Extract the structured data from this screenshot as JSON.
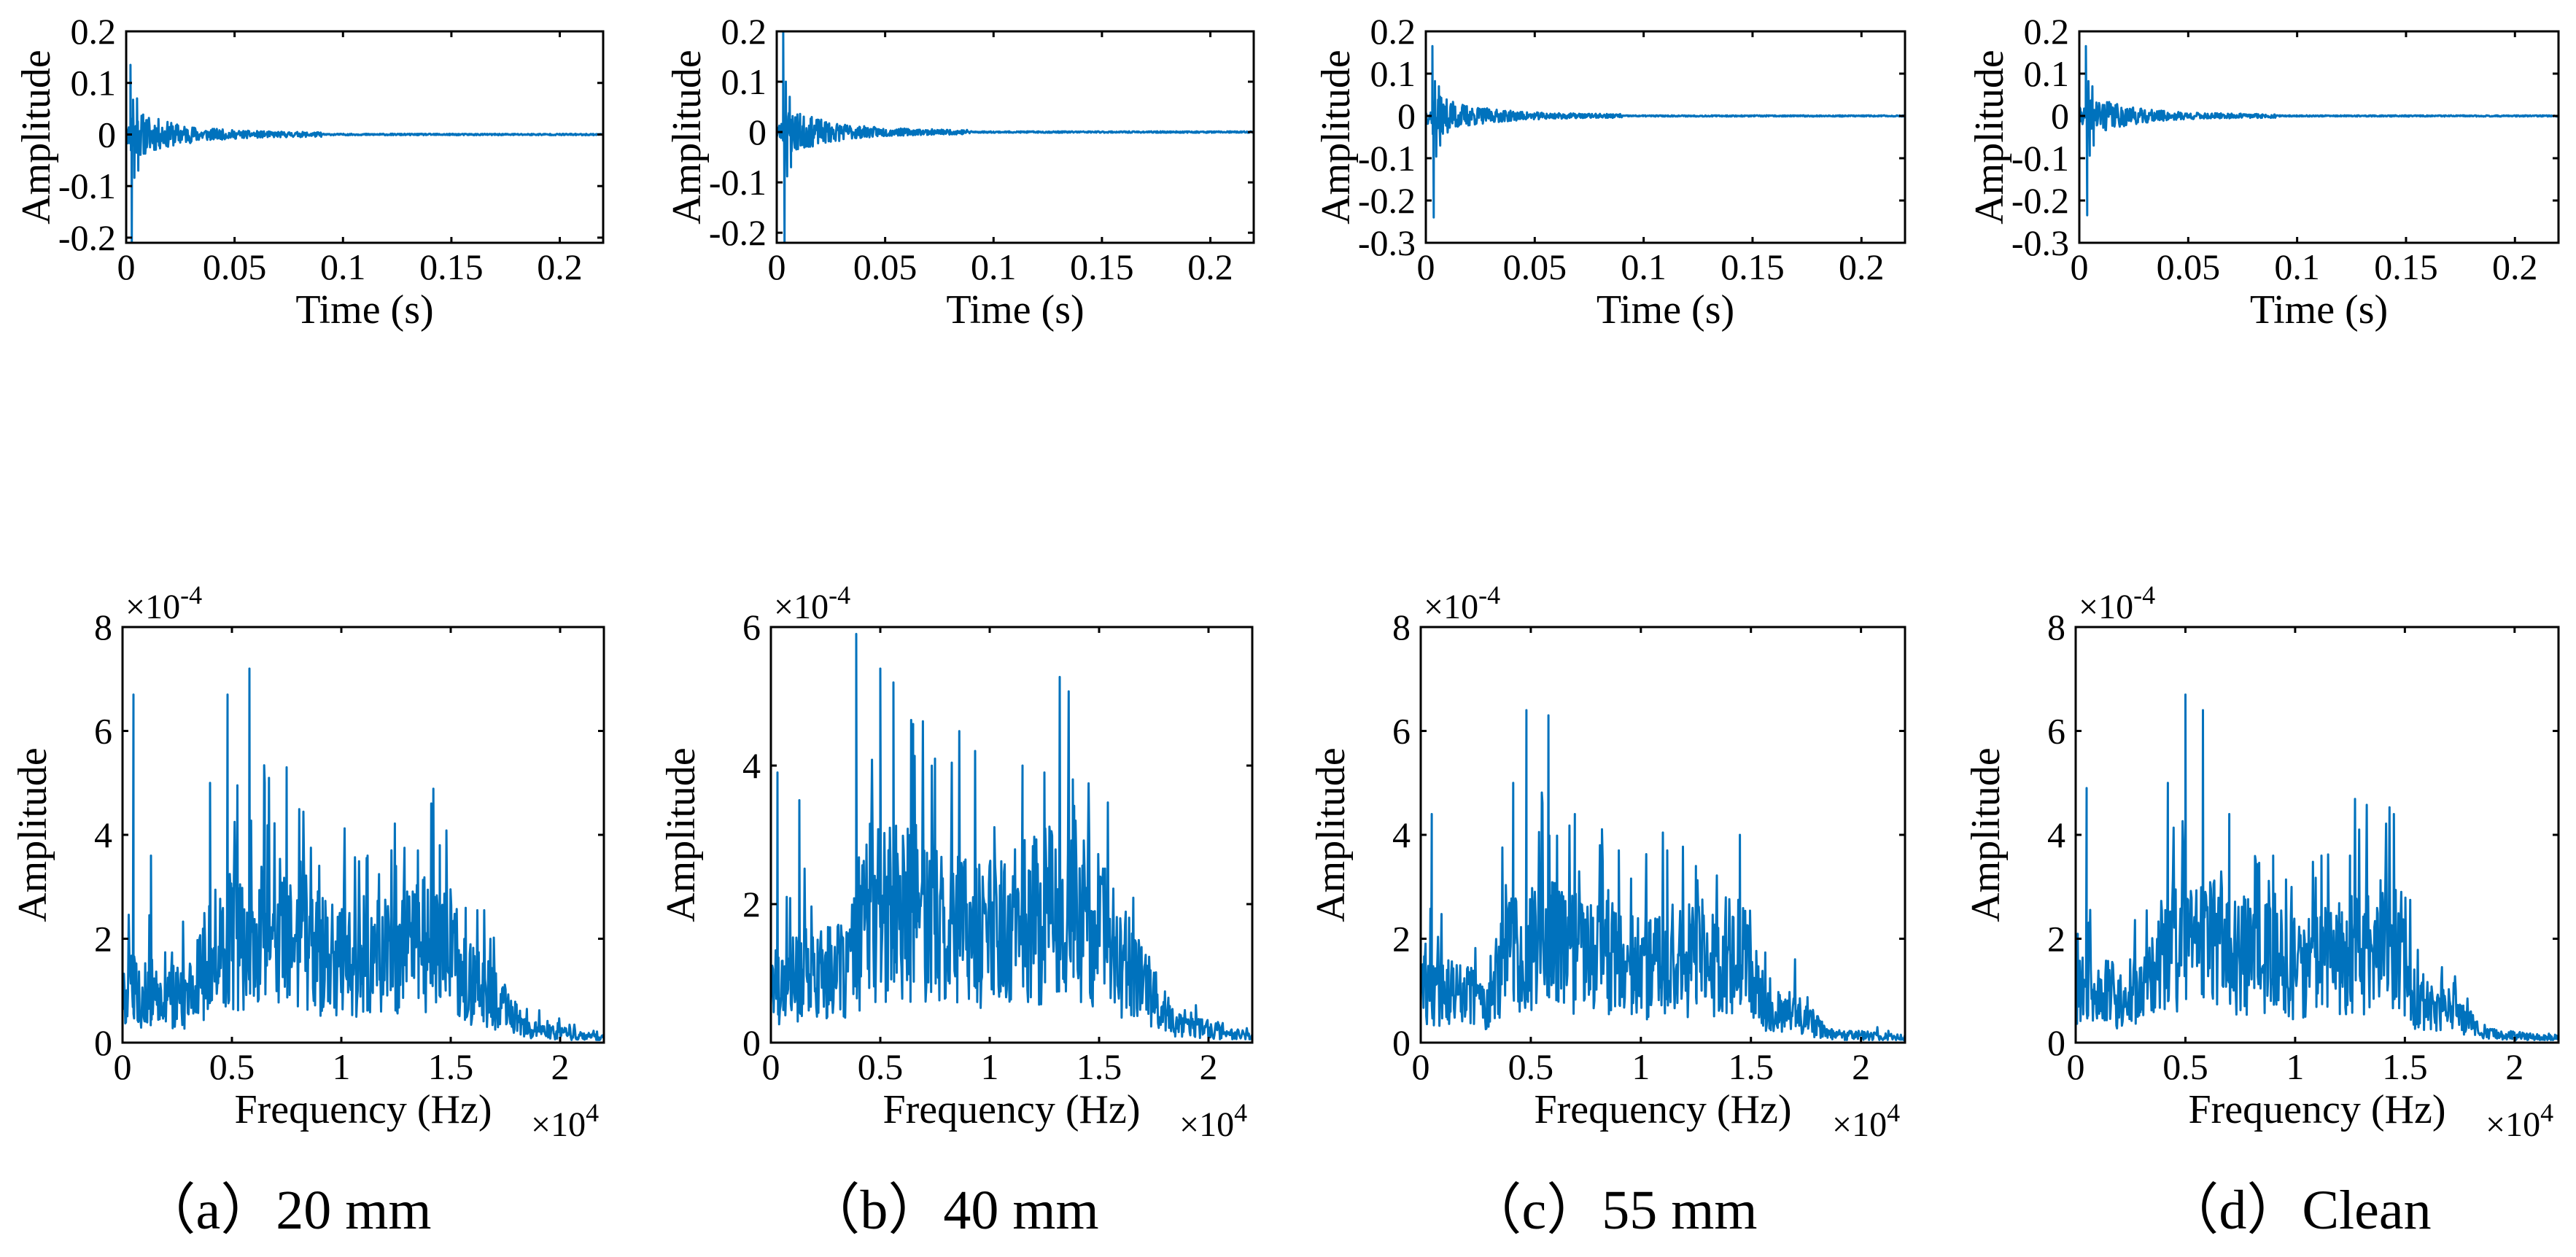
{
  "colors": {
    "series": "#0072BD",
    "axes": "#000000"
  },
  "captions": [
    {
      "label": "（a）20 mm"
    },
    {
      "label": "（b）40 mm"
    },
    {
      "label": "（c）55 mm"
    },
    {
      "label": "（d）Clean"
    }
  ],
  "chart_data": [
    {
      "id": "a-time",
      "type": "line",
      "title": "",
      "xlabel": "Time (s)",
      "ylabel": "Amplitude",
      "xlim": [
        0,
        0.22
      ],
      "ylim": [
        -0.21,
        0.2
      ],
      "xticks": [
        0,
        0.05,
        0.1,
        0.15,
        0.2
      ],
      "xtick_labels": [
        "0",
        "0.05",
        "0.1",
        "0.15",
        "0.2"
      ],
      "yticks": [
        -0.2,
        -0.1,
        0,
        0.1,
        0.2
      ],
      "ytick_labels": [
        "-0.2",
        "-0.1",
        "0",
        "0.1",
        "0.2"
      ],
      "multiplier": "",
      "series": [
        {
          "name": "signal",
          "signal_kind": "decay",
          "peak_pos": 0.135,
          "peak_neg": -0.21,
          "x_peak": 0.002,
          "decay_end": 0.09,
          "seed": 11
        }
      ]
    },
    {
      "id": "b-time",
      "type": "line",
      "title": "",
      "xlabel": "Time (s)",
      "ylabel": "Amplitude",
      "xlim": [
        0,
        0.22
      ],
      "ylim": [
        -0.22,
        0.2
      ],
      "xticks": [
        0,
        0.05,
        0.1,
        0.15,
        0.2
      ],
      "xtick_labels": [
        "0",
        "0.05",
        "0.1",
        "0.15",
        "0.2"
      ],
      "yticks": [
        -0.2,
        -0.1,
        0,
        0.1,
        0.2
      ],
      "ytick_labels": [
        "-0.2",
        "-0.1",
        "0",
        "0.1",
        "0.2"
      ],
      "multiplier": "",
      "series": [
        {
          "name": "signal",
          "signal_kind": "decay",
          "peak_pos": 0.2,
          "peak_neg": -0.22,
          "x_peak": 0.003,
          "decay_end": 0.09,
          "seed": 23
        }
      ]
    },
    {
      "id": "c-time",
      "type": "line",
      "title": "",
      "xlabel": "Time (s)",
      "ylabel": "Amplitude",
      "xlim": [
        0,
        0.22
      ],
      "ylim": [
        -0.3,
        0.2
      ],
      "xticks": [
        0,
        0.05,
        0.1,
        0.15,
        0.2
      ],
      "xtick_labels": [
        "0",
        "0.05",
        "0.1",
        "0.15",
        "0.2"
      ],
      "yticks": [
        -0.3,
        -0.2,
        -0.1,
        0,
        0.1,
        0.2
      ],
      "ytick_labels": [
        "-0.3",
        "-0.2",
        "-0.1",
        "0",
        "0.1",
        "0.2"
      ],
      "multiplier": "",
      "series": [
        {
          "name": "signal",
          "signal_kind": "decay",
          "peak_pos": 0.165,
          "peak_neg": -0.24,
          "x_peak": 0.003,
          "decay_end": 0.09,
          "seed": 37
        }
      ]
    },
    {
      "id": "d-time",
      "type": "line",
      "title": "",
      "xlabel": "Time (s)",
      "ylabel": "Amplitude",
      "xlim": [
        0,
        0.22
      ],
      "ylim": [
        -0.3,
        0.2
      ],
      "xticks": [
        0,
        0.05,
        0.1,
        0.15,
        0.2
      ],
      "xtick_labels": [
        "0",
        "0.05",
        "0.1",
        "0.15",
        "0.2"
      ],
      "yticks": [
        -0.3,
        -0.2,
        -0.1,
        0,
        0.1,
        0.2
      ],
      "ytick_labels": [
        "-0.3",
        "-0.2",
        "-0.1",
        "0",
        "0.1",
        "0.2"
      ],
      "multiplier": "",
      "series": [
        {
          "name": "signal",
          "signal_kind": "decay",
          "peak_pos": 0.165,
          "peak_neg": -0.235,
          "x_peak": 0.003,
          "decay_end": 0.09,
          "seed": 41
        }
      ]
    },
    {
      "id": "a-freq",
      "type": "line",
      "title": "",
      "xlabel": "Frequency (Hz)",
      "ylabel": "Amplitude",
      "xlim": [
        0,
        2.2
      ],
      "ylim": [
        0,
        8
      ],
      "xticks": [
        0,
        0.5,
        1,
        1.5,
        2
      ],
      "xtick_labels": [
        "0",
        "0.5",
        "1",
        "1.5",
        "2"
      ],
      "yticks": [
        0,
        2,
        4,
        6,
        8
      ],
      "ytick_labels": [
        "0",
        "2",
        "4",
        "6",
        "8"
      ],
      "y_multiplier_base": "×10",
      "y_multiplier_exp": "-4",
      "x_multiplier_base": "×10",
      "x_multiplier_exp": "4",
      "series": [
        {
          "name": "spectrum",
          "signal_kind": "spectrum",
          "seed": 5,
          "envelope": [
            [
              0,
              1.2
            ],
            [
              0.3,
              1.0
            ],
            [
              0.4,
              2.0
            ],
            [
              0.6,
              2.4
            ],
            [
              1.0,
              1.8
            ],
            [
              1.4,
              2.2
            ],
            [
              1.52,
              2.2
            ],
            [
              1.56,
              1.4
            ],
            [
              1.7,
              1.0
            ],
            [
              1.85,
              0.3
            ],
            [
              2.2,
              0.1
            ]
          ],
          "peaks": [
            [
              0.05,
              6.7
            ],
            [
              0.13,
              3.6
            ],
            [
              0.4,
              5.0
            ],
            [
              0.48,
              6.7
            ],
            [
              0.58,
              7.2
            ],
            [
              0.65,
              5.0
            ],
            [
              0.75,
              5.3
            ],
            [
              1.12,
              3.6
            ],
            [
              1.25,
              3.4
            ],
            [
              1.35,
              3.7
            ],
            [
              1.45,
              3.8
            ]
          ]
        }
      ]
    },
    {
      "id": "b-freq",
      "type": "line",
      "title": "",
      "xlabel": "Frequency (Hz)",
      "ylabel": "Amplitude",
      "xlim": [
        0,
        2.2
      ],
      "ylim": [
        0,
        6
      ],
      "xticks": [
        0,
        0.5,
        1,
        1.5,
        2
      ],
      "xtick_labels": [
        "0",
        "0.5",
        "1",
        "1.5",
        "2"
      ],
      "yticks": [
        0,
        2,
        4,
        6
      ],
      "ytick_labels": [
        "0",
        "2",
        "4",
        "6"
      ],
      "y_multiplier_base": "×10",
      "y_multiplier_exp": "-4",
      "x_multiplier_base": "×10",
      "x_multiplier_exp": "4",
      "series": [
        {
          "name": "spectrum",
          "signal_kind": "spectrum",
          "seed": 17,
          "envelope": [
            [
              0,
              1.0
            ],
            [
              0.35,
              1.2
            ],
            [
              0.45,
              2.2
            ],
            [
              0.7,
              2.2
            ],
            [
              1.0,
              1.8
            ],
            [
              1.4,
              2.4
            ],
            [
              1.55,
              1.6
            ],
            [
              1.7,
              1.0
            ],
            [
              1.85,
              0.3
            ],
            [
              2.2,
              0.1
            ]
          ],
          "peaks": [
            [
              0.03,
              3.9
            ],
            [
              0.13,
              3.5
            ],
            [
              0.39,
              5.9
            ],
            [
              0.5,
              5.4
            ],
            [
              0.56,
              5.2
            ],
            [
              0.65,
              4.6
            ],
            [
              0.75,
              4.1
            ],
            [
              1.15,
              4.0
            ],
            [
              1.25,
              3.9
            ],
            [
              1.38,
              3.8
            ]
          ]
        }
      ]
    },
    {
      "id": "c-freq",
      "type": "line",
      "title": "",
      "xlabel": "Frequency (Hz)",
      "ylabel": "Amplitude",
      "xlim": [
        0,
        2.2
      ],
      "ylim": [
        0,
        8
      ],
      "xticks": [
        0,
        0.5,
        1,
        1.5,
        2
      ],
      "xtick_labels": [
        "0",
        "0.5",
        "1",
        "1.5",
        "2"
      ],
      "yticks": [
        0,
        2,
        4,
        6,
        8
      ],
      "ytick_labels": [
        "0",
        "2",
        "4",
        "6",
        "8"
      ],
      "y_multiplier_base": "×10",
      "y_multiplier_exp": "-4",
      "x_multiplier_base": "×10",
      "x_multiplier_exp": "4",
      "series": [
        {
          "name": "spectrum",
          "signal_kind": "spectrum",
          "seed": 29,
          "envelope": [
            [
              0,
              1.2
            ],
            [
              0.3,
              1.0
            ],
            [
              0.4,
              2.0
            ],
            [
              0.6,
              2.2
            ],
            [
              1.0,
              1.7
            ],
            [
              1.4,
              2.0
            ],
            [
              1.5,
              2.0
            ],
            [
              1.55,
              0.8
            ],
            [
              1.7,
              0.7
            ],
            [
              1.85,
              0.2
            ],
            [
              2.2,
              0.1
            ]
          ],
          "peaks": [
            [
              0.05,
              4.4
            ],
            [
              0.42,
              5.0
            ],
            [
              0.48,
              6.4
            ],
            [
              0.58,
              6.3
            ],
            [
              0.7,
              4.4
            ],
            [
              0.9,
              3.7
            ],
            [
              1.12,
              3.7
            ],
            [
              1.25,
              3.4
            ],
            [
              1.45,
              4.0
            ]
          ]
        }
      ]
    },
    {
      "id": "d-freq",
      "type": "line",
      "title": "",
      "xlabel": "Frequency (Hz)",
      "ylabel": "Amplitude",
      "xlim": [
        0,
        2.2
      ],
      "ylim": [
        0,
        8
      ],
      "xticks": [
        0,
        0.5,
        1,
        1.5,
        2
      ],
      "xtick_labels": [
        "0",
        "0.5",
        "1",
        "1.5",
        "2"
      ],
      "yticks": [
        0,
        2,
        4,
        6,
        8
      ],
      "ytick_labels": [
        "0",
        "2",
        "4",
        "6",
        "8"
      ],
      "y_multiplier_base": "×10",
      "y_multiplier_exp": "-4",
      "x_multiplier_base": "×10",
      "x_multiplier_exp": "4",
      "series": [
        {
          "name": "spectrum",
          "signal_kind": "spectrum",
          "seed": 31,
          "envelope": [
            [
              0,
              1.2
            ],
            [
              0.3,
              1.0
            ],
            [
              0.4,
              2.0
            ],
            [
              0.6,
              2.2
            ],
            [
              1.0,
              1.7
            ],
            [
              1.4,
              2.2
            ],
            [
              1.5,
              2.0
            ],
            [
              1.55,
              0.9
            ],
            [
              1.7,
              0.9
            ],
            [
              1.85,
              0.2
            ],
            [
              2.2,
              0.1
            ]
          ],
          "peaks": [
            [
              0.05,
              4.9
            ],
            [
              0.42,
              5.0
            ],
            [
              0.5,
              6.7
            ],
            [
              0.58,
              6.4
            ],
            [
              0.7,
              4.4
            ],
            [
              0.9,
              3.6
            ],
            [
              1.12,
              3.6
            ],
            [
              1.25,
              3.6
            ],
            [
              1.45,
              4.4
            ]
          ]
        }
      ]
    }
  ]
}
